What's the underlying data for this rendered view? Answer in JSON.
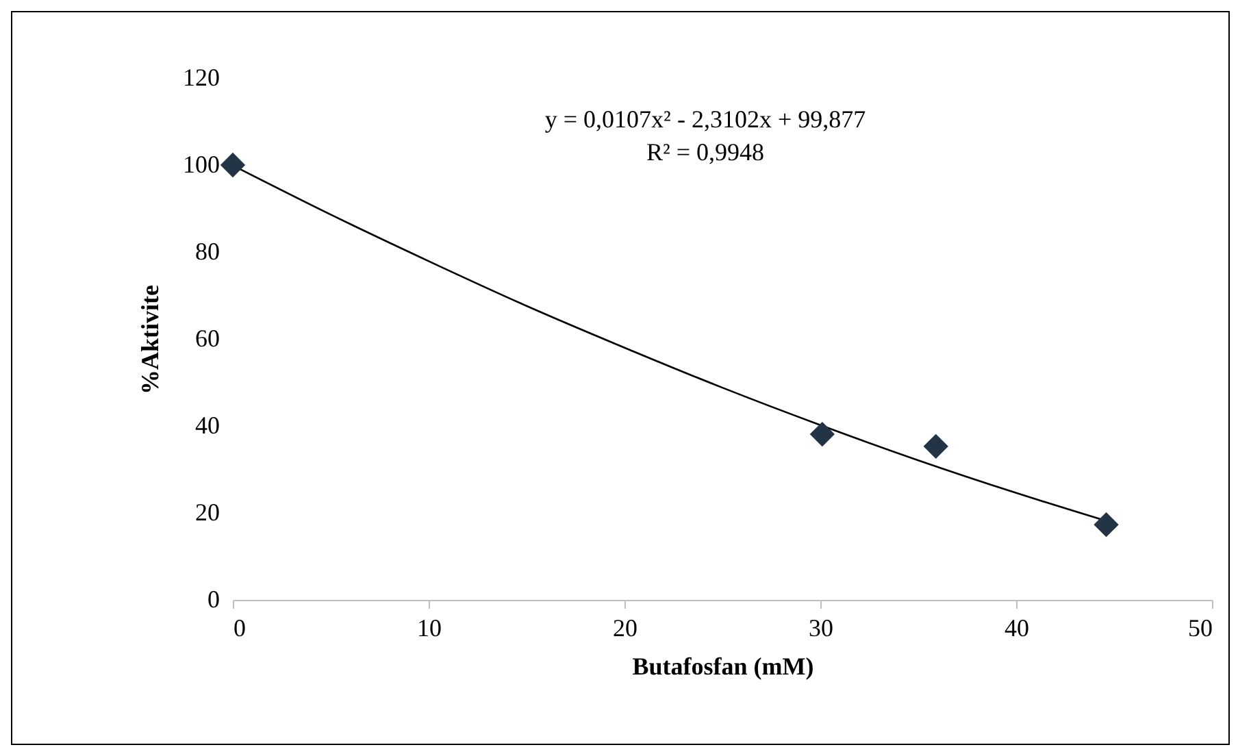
{
  "chart_data": {
    "type": "scatter",
    "xlabel": "Butafosfan (mM)",
    "ylabel": "%Aktivite",
    "xlim": [
      0,
      50
    ],
    "xticks": [
      0,
      10,
      20,
      30,
      40,
      50
    ],
    "ylim": [
      0,
      120
    ],
    "yticks": [
      0,
      20,
      40,
      60,
      80,
      100,
      120
    ],
    "grid": false,
    "marker": "diamond",
    "annotations": [
      "y = 0,0107x² - 2,3102x + 99,877",
      "R² = 0,9948"
    ],
    "series": [
      {
        "color": "#243447",
        "x": [
          0,
          30.1,
          35.9,
          44.6
        ],
        "values": [
          100,
          38.1,
          35.3,
          17.3
        ]
      },
      {
        "type": "line",
        "color": "#000000",
        "line_style": "solid",
        "marker": "none",
        "x": [
          0,
          5,
          10,
          15,
          20,
          25,
          30,
          35,
          40,
          45
        ],
        "values": [
          99.9,
          88.6,
          77.9,
          67.6,
          58,
          48.8,
          40.2,
          32.1,
          24.6,
          17.6
        ]
      }
    ]
  }
}
